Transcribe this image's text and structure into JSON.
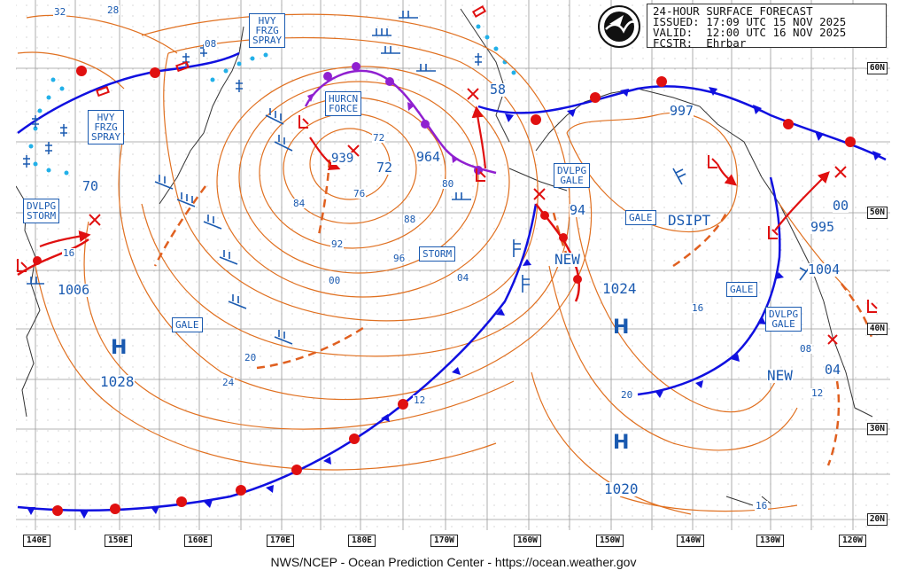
{
  "header": {
    "line1": "24-HOUR SURFACE FORECAST",
    "line2": "ISSUED: 17:09 UTC 15 NOV 2025",
    "line3": "VALID:  12:00 UTC 16 NOV 2025",
    "line4": "FCSTR:  Ehrbar",
    "logo_icon": "noaa-logo-icon"
  },
  "footer": "NWS/NCEP - Ocean Prediction Center - https://ocean.weather.gov",
  "latitudes": [
    "60N",
    "50N",
    "40N",
    "30N",
    "20N"
  ],
  "longitudes": [
    "140E",
    "150E",
    "160E",
    "170E",
    "180E",
    "170W",
    "160W",
    "150W",
    "140W",
    "130W",
    "120W"
  ],
  "pressure_centers": {
    "high_1028": {
      "symbol": "H",
      "value": "1028"
    },
    "high_1024": {
      "symbol": "H",
      "value": "1024"
    },
    "high_1020": {
      "symbol": "H",
      "value": "1020"
    },
    "low_939": "939",
    "low_964": "964",
    "low_997": "997",
    "low_995": "995",
    "low_1004": "1004",
    "low_1006": "1006",
    "low_00": "00",
    "low_58": "58",
    "low_70": "70",
    "low_72": "72",
    "low_94": "94",
    "low_04": "04",
    "dsipt": "DSIPT",
    "new_a": "NEW",
    "new_b": "NEW"
  },
  "boxes": {
    "hvy_frzg_spray_1": [
      "HVY",
      "FRZG",
      "SPRAY"
    ],
    "hvy_frzg_spray_2": [
      "HVY",
      "FRZG",
      "SPRAY"
    ],
    "hurcn_force": [
      "HURCN",
      "FORCE"
    ],
    "dvlpg_storm": [
      "DVLPG",
      "STORM"
    ],
    "dvlpg_gale_1": [
      "DVLPG",
      "GALE"
    ],
    "dvlpg_gale_2": [
      "DVLPG",
      "GALE"
    ],
    "storm": "STORM",
    "gale_1": "GALE",
    "gale_2": "GALE",
    "gale_3": "GALE"
  },
  "isobar_labels": {
    "l32": "32",
    "l28": "28",
    "l08a": "08",
    "l72": "72",
    "l76": "76",
    "l84": "84",
    "l80": "80",
    "l88": "88",
    "l92": "92",
    "l96": "96",
    "l00": "00",
    "l04a": "04",
    "l16a": "16",
    "l20a": "20",
    "l24": "24",
    "l12a": "12",
    "l16b": "16",
    "l20b": "20",
    "l08b": "08",
    "l12b": "12",
    "l16c": "16"
  },
  "colors": {
    "isobar": "#e07020",
    "cold_front": "#1010e0",
    "warm_front": "#e01010",
    "occluded": "#9020d0",
    "label": "#1a5ab0",
    "grid": "#9a9a9a",
    "ice_edge": "#22b0e8"
  }
}
